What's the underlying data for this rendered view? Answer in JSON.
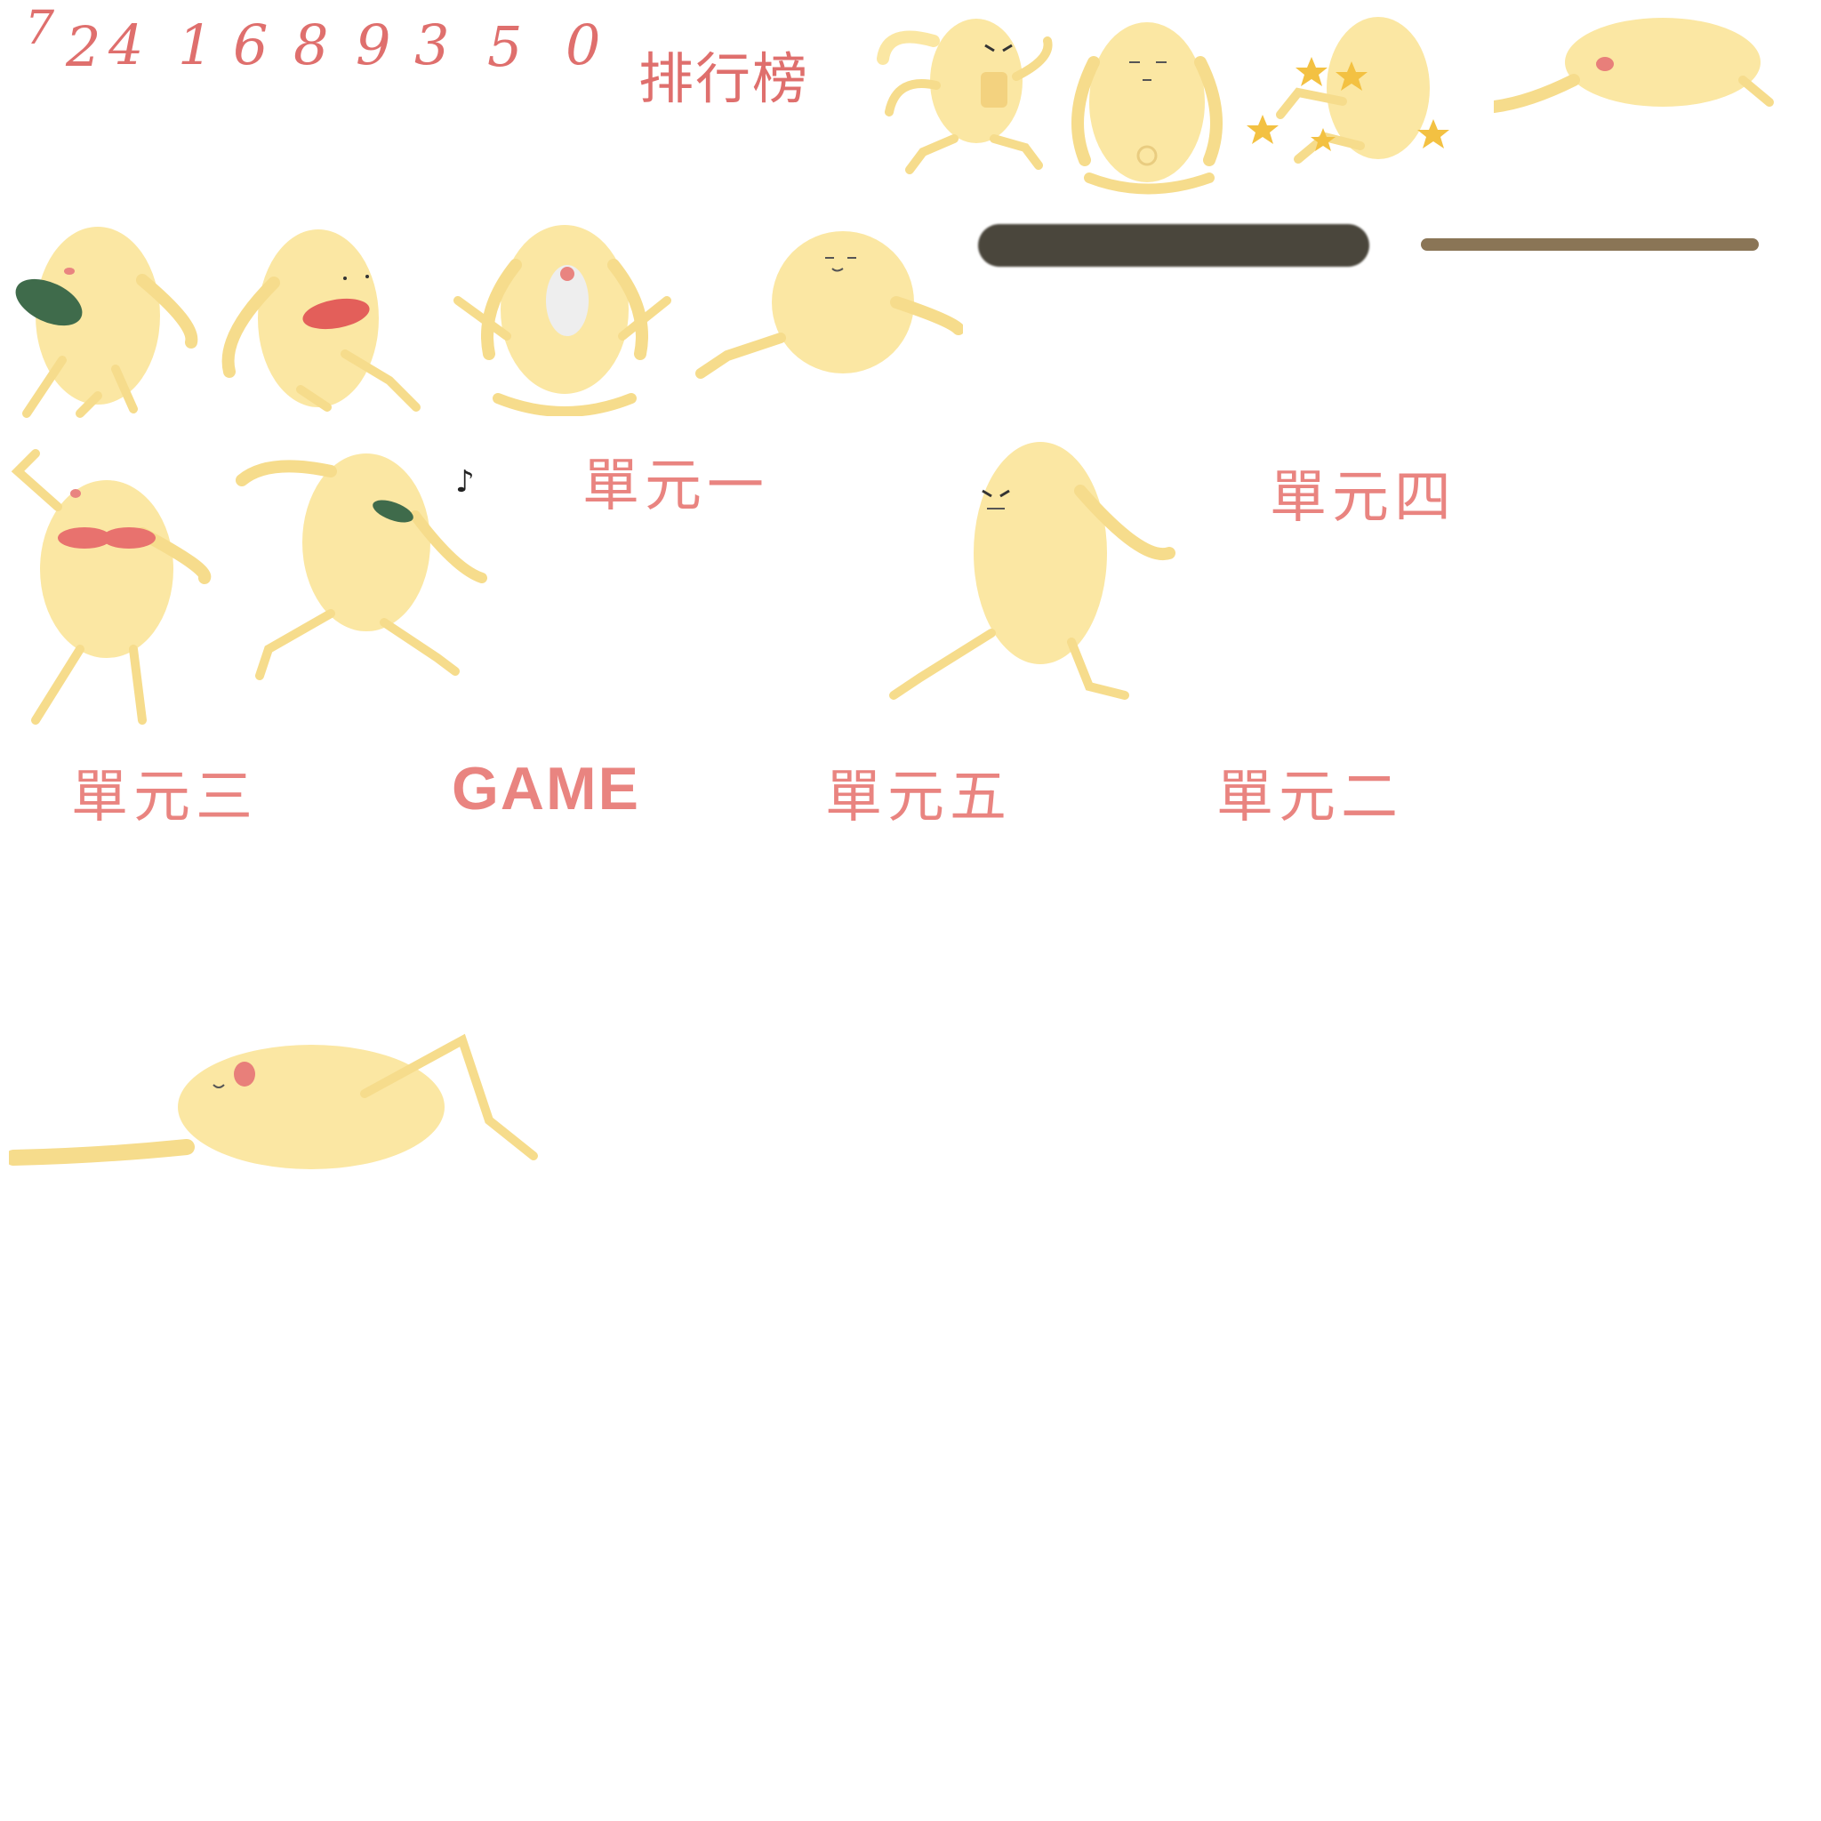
{
  "digits": [
    "7",
    "2",
    "4",
    "1",
    "6",
    "8",
    "9",
    "3",
    "5",
    "0"
  ],
  "rank_label": "排行榜",
  "units": {
    "one": "單元一",
    "two": "單元二",
    "three": "單元三",
    "four": "單元四",
    "five": "單元五"
  },
  "game_label": "GAME",
  "colors": {
    "text": "#e98480",
    "digits": "#df6f6d",
    "character": "#fbe7a3",
    "bar_dark": "#4a463c",
    "bar_light": "#8a7556"
  }
}
